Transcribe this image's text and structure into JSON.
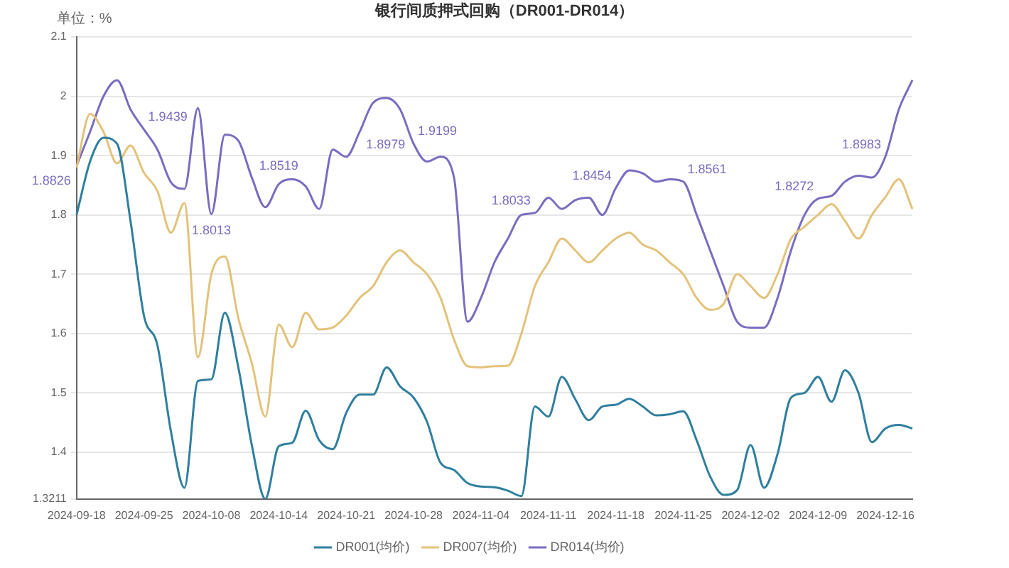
{
  "chart_data": {
    "type": "line",
    "title": "银行间质押式回购（DR001-DR014）",
    "ylabel": "单位：%",
    "categories": [
      "2024-09-18",
      null,
      null,
      null,
      null,
      "2024-09-25",
      null,
      null,
      null,
      null,
      "2024-10-08",
      null,
      null,
      null,
      null,
      "2024-10-14",
      null,
      null,
      null,
      null,
      "2024-10-21",
      null,
      null,
      null,
      null,
      "2024-10-28",
      null,
      null,
      null,
      null,
      "2024-11-04",
      null,
      null,
      null,
      null,
      "2024-11-11",
      null,
      null,
      null,
      null,
      "2024-11-18",
      null,
      null,
      null,
      null,
      "2024-11-25",
      null,
      null,
      null,
      null,
      "2024-12-02",
      null,
      null,
      null,
      null,
      "2024-12-09",
      null,
      null,
      null,
      null,
      "2024-12-16",
      null,
      null
    ],
    "series": [
      {
        "name": "DR001(均价)",
        "color": "#2f7f9e",
        "values": [
          1.8,
          1.89,
          1.93,
          1.92,
          1.79,
          1.63,
          1.58,
          1.435,
          1.34,
          1.52,
          1.523,
          1.635,
          1.543,
          1.412,
          1.3211,
          1.41,
          1.416,
          1.47,
          1.42,
          1.405,
          1.466,
          1.497,
          1.497,
          1.543,
          1.511,
          1.492,
          1.451,
          1.382,
          1.37,
          1.348,
          1.342,
          1.341,
          1.335,
          1.326,
          1.477,
          1.46,
          1.527,
          1.489,
          1.454,
          1.477,
          1.48,
          1.49,
          1.477,
          1.462,
          1.464,
          1.469,
          1.42,
          1.359,
          1.328,
          1.336,
          1.412,
          1.34,
          1.397,
          1.492,
          1.5,
          1.527,
          1.485,
          1.538,
          1.5,
          1.417,
          1.44,
          1.446,
          1.44
        ]
      },
      {
        "name": "DR007(均价)",
        "color": "#e3c27a",
        "values": [
          1.88,
          1.97,
          1.94,
          1.887,
          1.917,
          1.871,
          1.84,
          1.77,
          1.82,
          1.56,
          1.7,
          1.73,
          1.626,
          1.55,
          1.46,
          1.615,
          1.577,
          1.635,
          1.607,
          1.61,
          1.63,
          1.66,
          1.68,
          1.72,
          1.74,
          1.72,
          1.7,
          1.66,
          1.59,
          1.545,
          1.543,
          1.545,
          1.546,
          1.6,
          1.68,
          1.72,
          1.76,
          1.74,
          1.72,
          1.74,
          1.76,
          1.77,
          1.75,
          1.74,
          1.72,
          1.7,
          1.66,
          1.64,
          1.65,
          1.7,
          1.68,
          1.66,
          1.7,
          1.76,
          1.78,
          1.8,
          1.818,
          1.79,
          1.76,
          1.8,
          1.83,
          1.86,
          1.81
        ]
      },
      {
        "name": "DR014(均价)",
        "color": "#7a6cc0",
        "values": [
          1.8826,
          1.94,
          2.0,
          2.027,
          1.978,
          1.9439,
          1.91,
          1.855,
          1.844,
          1.98,
          1.8013,
          1.935,
          1.925,
          1.863,
          1.813,
          1.8519,
          1.86,
          1.848,
          1.81,
          1.91,
          1.8979,
          1.94,
          1.989,
          1.997,
          1.978,
          1.9199,
          1.89,
          1.898,
          1.863,
          1.62,
          1.66,
          1.72,
          1.76,
          1.8,
          1.8033,
          1.829,
          1.81,
          1.825,
          1.829,
          1.8,
          1.8454,
          1.875,
          1.87,
          1.856,
          1.86,
          1.8561,
          1.8,
          1.74,
          1.68,
          1.62,
          1.61,
          1.61,
          1.66,
          1.74,
          1.8,
          1.8272,
          1.832,
          1.856,
          1.866,
          1.863,
          1.8983,
          1.978,
          2.027
        ],
        "value_labels": [
          "1.8826",
          null,
          null,
          null,
          null,
          "1.9439",
          null,
          null,
          null,
          null,
          "1.8013",
          null,
          null,
          null,
          null,
          "1.8519",
          null,
          null,
          null,
          null,
          "1.8979",
          null,
          null,
          null,
          null,
          "1.9199",
          null,
          null,
          null,
          null,
          null,
          null,
          null,
          null,
          "1.8033",
          null,
          null,
          null,
          null,
          null,
          "1.8454",
          null,
          null,
          null,
          null,
          "1.8561",
          null,
          null,
          null,
          null,
          null,
          null,
          null,
          null,
          null,
          "1.8272",
          null,
          null,
          null,
          null,
          "1.8983",
          null,
          null
        ]
      }
    ],
    "ylim": [
      1.3211,
      2.1
    ],
    "yticks": [
      1.3211,
      1.4,
      1.5,
      1.6,
      1.7,
      1.8,
      1.9,
      2,
      2.1
    ],
    "grid": "y",
    "legend": "bottom",
    "marker": "none",
    "line_style": "solid"
  }
}
